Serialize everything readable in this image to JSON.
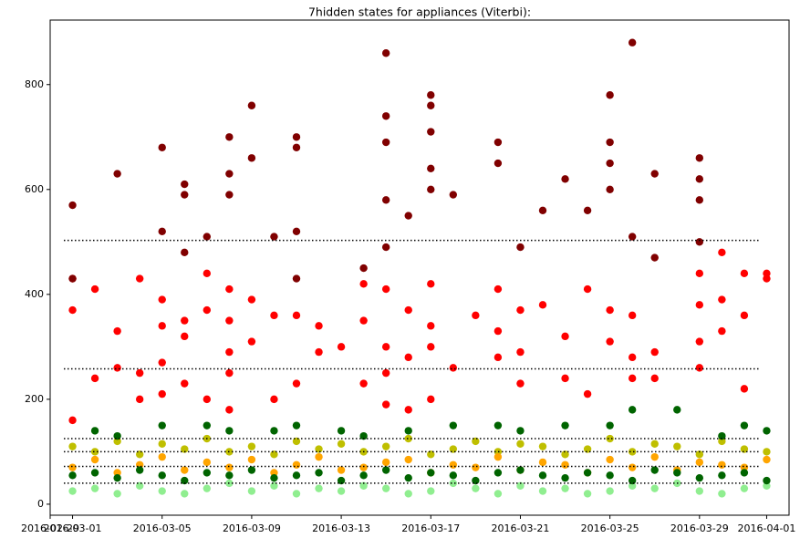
{
  "chart_data": {
    "type": "scatter",
    "title": "7hidden states for appliances (Viterbi):",
    "xlim": [
      "2016-02-29",
      "2016-04-02"
    ],
    "xticks": [
      "2016-02-29",
      "2016-03-01",
      "2016-03-05",
      "2016-03-09",
      "2016-03-13",
      "2016-03-17",
      "2016-03-21",
      "2016-03-25",
      "2016-03-29",
      "2016-04-01"
    ],
    "ylim": [
      -21,
      923
    ],
    "yticks": [
      0,
      200,
      400,
      600,
      800
    ],
    "hlines": [
      503,
      258,
      125,
      100,
      72,
      40
    ],
    "series": [
      {
        "color": "#90ee90",
        "x": [
          "2016-03-01",
          "2016-03-02",
          "2016-03-03",
          "2016-03-04",
          "2016-03-05",
          "2016-03-06",
          "2016-03-07",
          "2016-03-08",
          "2016-03-09",
          "2016-03-10",
          "2016-03-11",
          "2016-03-12",
          "2016-03-13",
          "2016-03-14",
          "2016-03-15",
          "2016-03-16",
          "2016-03-17",
          "2016-03-18",
          "2016-03-19",
          "2016-03-20",
          "2016-03-21",
          "2016-03-22",
          "2016-03-23",
          "2016-03-24",
          "2016-03-25",
          "2016-03-26",
          "2016-03-27",
          "2016-03-28",
          "2016-03-29",
          "2016-03-30",
          "2016-03-31",
          "2016-04-01"
        ],
        "values": [
          25,
          30,
          20,
          35,
          25,
          20,
          30,
          40,
          25,
          35,
          20,
          30,
          25,
          35,
          30,
          20,
          25,
          40,
          30,
          20,
          35,
          25,
          30,
          20,
          25,
          35,
          30,
          40,
          25,
          20,
          30,
          35
        ]
      },
      {
        "color": "#bfbf00",
        "x": [
          "2016-03-01",
          "2016-03-02",
          "2016-03-03",
          "2016-03-04",
          "2016-03-05",
          "2016-03-06",
          "2016-03-07",
          "2016-03-08",
          "2016-03-09",
          "2016-03-10",
          "2016-03-11",
          "2016-03-12",
          "2016-03-13",
          "2016-03-14",
          "2016-03-15",
          "2016-03-16",
          "2016-03-17",
          "2016-03-18",
          "2016-03-19",
          "2016-03-20",
          "2016-03-21",
          "2016-03-22",
          "2016-03-23",
          "2016-03-24",
          "2016-03-25",
          "2016-03-26",
          "2016-03-27",
          "2016-03-28",
          "2016-03-29",
          "2016-03-30",
          "2016-03-31",
          "2016-04-01"
        ],
        "values": [
          110,
          100,
          120,
          95,
          115,
          105,
          125,
          100,
          110,
          95,
          120,
          105,
          115,
          100,
          110,
          125,
          95,
          105,
          120,
          100,
          115,
          110,
          95,
          105,
          125,
          100,
          115,
          110,
          95,
          120,
          105,
          100
        ]
      },
      {
        "color": "#ffa500",
        "x": [
          "2016-03-01",
          "2016-03-02",
          "2016-03-03",
          "2016-03-04",
          "2016-03-05",
          "2016-03-06",
          "2016-03-07",
          "2016-03-08",
          "2016-03-09",
          "2016-03-10",
          "2016-03-11",
          "2016-03-12",
          "2016-03-13",
          "2016-03-14",
          "2016-03-15",
          "2016-03-16",
          "2016-03-17",
          "2016-03-18",
          "2016-03-19",
          "2016-03-20",
          "2016-03-21",
          "2016-03-22",
          "2016-03-23",
          "2016-03-24",
          "2016-03-25",
          "2016-03-26",
          "2016-03-27",
          "2016-03-28",
          "2016-03-29",
          "2016-03-30",
          "2016-03-31",
          "2016-04-01"
        ],
        "values": [
          70,
          85,
          60,
          75,
          90,
          65,
          80,
          70,
          85,
          60,
          75,
          90,
          65,
          70,
          80,
          85,
          60,
          75,
          70,
          90,
          65,
          80,
          75,
          60,
          85,
          70,
          90,
          65,
          80,
          75,
          70,
          85
        ]
      },
      {
        "color": "#006400",
        "x": [
          "2016-03-01",
          "2016-03-02",
          "2016-03-03",
          "2016-03-04",
          "2016-03-05",
          "2016-03-06",
          "2016-03-07",
          "2016-03-08",
          "2016-03-09",
          "2016-03-10",
          "2016-03-11",
          "2016-03-12",
          "2016-03-13",
          "2016-03-14",
          "2016-03-15",
          "2016-03-16",
          "2016-03-17",
          "2016-03-18",
          "2016-03-19",
          "2016-03-20",
          "2016-03-21",
          "2016-03-22",
          "2016-03-23",
          "2016-03-24",
          "2016-03-25",
          "2016-03-26",
          "2016-03-27",
          "2016-03-28",
          "2016-03-29",
          "2016-03-30",
          "2016-03-31",
          "2016-04-01",
          "2016-03-02",
          "2016-03-03",
          "2016-03-05",
          "2016-03-07",
          "2016-03-08",
          "2016-03-10",
          "2016-03-11",
          "2016-03-13",
          "2016-03-14",
          "2016-03-16",
          "2016-03-18",
          "2016-03-20",
          "2016-03-21",
          "2016-03-23",
          "2016-03-25",
          "2016-03-26",
          "2016-03-28",
          "2016-03-30",
          "2016-03-31",
          "2016-04-01"
        ],
        "values": [
          55,
          60,
          50,
          65,
          55,
          45,
          60,
          55,
          65,
          50,
          55,
          60,
          45,
          55,
          65,
          50,
          60,
          55,
          45,
          60,
          65,
          55,
          50,
          60,
          55,
          45,
          65,
          60,
          50,
          55,
          60,
          45,
          140,
          130,
          150,
          150,
          140,
          140,
          150,
          140,
          130,
          140,
          150,
          150,
          140,
          150,
          150,
          180,
          180,
          130,
          150,
          140
        ]
      },
      {
        "color": "#ff0000",
        "x": [
          "2016-03-01",
          "2016-03-01",
          "2016-03-01",
          "2016-03-02",
          "2016-03-02",
          "2016-03-03",
          "2016-03-03",
          "2016-03-04",
          "2016-03-04",
          "2016-03-04",
          "2016-03-05",
          "2016-03-05",
          "2016-03-05",
          "2016-03-05",
          "2016-03-06",
          "2016-03-06",
          "2016-03-06",
          "2016-03-07",
          "2016-03-07",
          "2016-03-07",
          "2016-03-08",
          "2016-03-08",
          "2016-03-08",
          "2016-03-08",
          "2016-03-08",
          "2016-03-09",
          "2016-03-09",
          "2016-03-10",
          "2016-03-10",
          "2016-03-11",
          "2016-03-11",
          "2016-03-12",
          "2016-03-12",
          "2016-03-13",
          "2016-03-14",
          "2016-03-14",
          "2016-03-14",
          "2016-03-15",
          "2016-03-15",
          "2016-03-15",
          "2016-03-15",
          "2016-03-16",
          "2016-03-16",
          "2016-03-16",
          "2016-03-17",
          "2016-03-17",
          "2016-03-17",
          "2016-03-17",
          "2016-03-18",
          "2016-03-19",
          "2016-03-20",
          "2016-03-20",
          "2016-03-20",
          "2016-03-21",
          "2016-03-21",
          "2016-03-21",
          "2016-03-22",
          "2016-03-23",
          "2016-03-23",
          "2016-03-24",
          "2016-03-24",
          "2016-03-25",
          "2016-03-25",
          "2016-03-26",
          "2016-03-26",
          "2016-03-26",
          "2016-03-27",
          "2016-03-27",
          "2016-03-29",
          "2016-03-29",
          "2016-03-29",
          "2016-03-29",
          "2016-03-30",
          "2016-03-30",
          "2016-03-30",
          "2016-03-31",
          "2016-03-31",
          "2016-03-31",
          "2016-04-01",
          "2016-04-01"
        ],
        "values": [
          430,
          370,
          160,
          240,
          410,
          330,
          260,
          430,
          250,
          200,
          390,
          340,
          270,
          210,
          350,
          320,
          230,
          440,
          370,
          200,
          410,
          350,
          290,
          250,
          180,
          390,
          310,
          360,
          200,
          360,
          230,
          290,
          340,
          300,
          420,
          350,
          230,
          410,
          300,
          250,
          190,
          370,
          280,
          180,
          420,
          340,
          300,
          200,
          260,
          360,
          410,
          330,
          280,
          370,
          290,
          230,
          380,
          320,
          240,
          410,
          210,
          370,
          310,
          360,
          280,
          240,
          290,
          240,
          440,
          380,
          310,
          260,
          480,
          390,
          330,
          440,
          360,
          220,
          440,
          430
        ]
      },
      {
        "color": "#800000",
        "x": [
          "2016-03-01",
          "2016-03-01",
          "2016-03-03",
          "2016-03-05",
          "2016-03-05",
          "2016-03-06",
          "2016-03-06",
          "2016-03-06",
          "2016-03-07",
          "2016-03-08",
          "2016-03-08",
          "2016-03-08",
          "2016-03-09",
          "2016-03-09",
          "2016-03-10",
          "2016-03-11",
          "2016-03-11",
          "2016-03-11",
          "2016-03-11",
          "2016-03-14",
          "2016-03-15",
          "2016-03-15",
          "2016-03-15",
          "2016-03-15",
          "2016-03-15",
          "2016-03-16",
          "2016-03-17",
          "2016-03-17",
          "2016-03-17",
          "2016-03-17",
          "2016-03-17",
          "2016-03-18",
          "2016-03-20",
          "2016-03-20",
          "2016-03-21",
          "2016-03-22",
          "2016-03-23",
          "2016-03-24",
          "2016-03-25",
          "2016-03-25",
          "2016-03-25",
          "2016-03-25",
          "2016-03-26",
          "2016-03-26",
          "2016-03-27",
          "2016-03-27",
          "2016-03-29",
          "2016-03-29",
          "2016-03-29",
          "2016-03-29"
        ],
        "values": [
          430,
          570,
          630,
          680,
          520,
          610,
          590,
          480,
          510,
          700,
          630,
          590,
          760,
          660,
          510,
          700,
          680,
          520,
          430,
          450,
          860,
          740,
          690,
          580,
          490,
          550,
          780,
          710,
          640,
          760,
          600,
          590,
          690,
          650,
          490,
          560,
          620,
          560,
          780,
          690,
          650,
          600,
          880,
          510,
          630,
          470,
          660,
          620,
          580,
          500
        ]
      }
    ]
  }
}
